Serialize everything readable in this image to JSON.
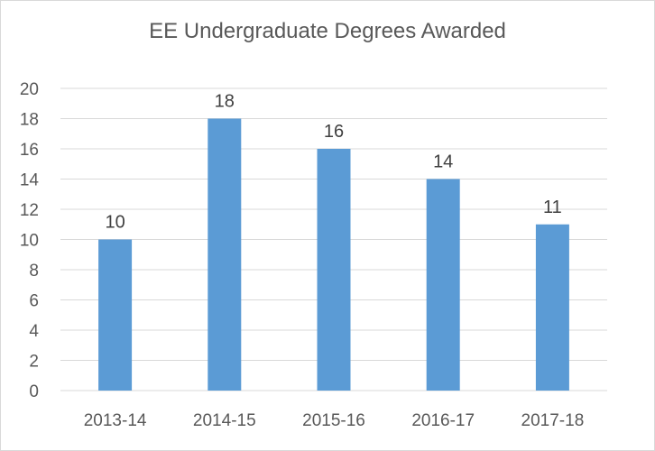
{
  "chart_data": {
    "type": "bar",
    "title": "EE Undergraduate Degrees Awarded",
    "xlabel": "",
    "ylabel": "",
    "categories": [
      "2013-14",
      "2014-15",
      "2015-16",
      "2016-17",
      "2017-18"
    ],
    "values": [
      10,
      18,
      16,
      14,
      11
    ],
    "data_labels": [
      "10",
      "18",
      "16",
      "14",
      "11"
    ],
    "y_ticks": [
      "0",
      "2",
      "4",
      "6",
      "8",
      "10",
      "12",
      "14",
      "16",
      "18",
      "20"
    ],
    "ylim": [
      0,
      20
    ],
    "grid": true,
    "legend": "none",
    "bar_color": "#5b9bd5",
    "grid_color": "#d9d9d9"
  }
}
